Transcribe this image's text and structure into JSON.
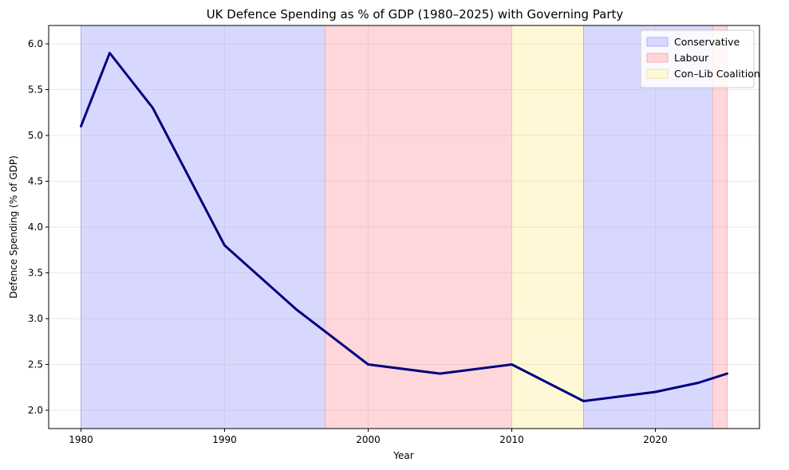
{
  "chart_data": {
    "type": "line",
    "title": "UK Defence Spending as % of GDP (1980–2025) with Governing Party",
    "xlabel": "Year",
    "ylabel": "Defence Spending (% of GDP)",
    "xlim": [
      1977.75,
      2027.25
    ],
    "ylim": [
      1.8,
      6.2
    ],
    "xticks": [
      1980,
      1990,
      2000,
      2010,
      2020
    ],
    "yticks": [
      2.0,
      2.5,
      3.0,
      3.5,
      4.0,
      4.5,
      5.0,
      5.5,
      6.0
    ],
    "ytick_labels": [
      "2.0",
      "2.5",
      "3.0",
      "3.5",
      "4.0",
      "4.5",
      "5.0",
      "5.5",
      "6.0"
    ],
    "grid": true,
    "legend_position": "top-right",
    "series": [
      {
        "name": "Defence Spending",
        "color": "#000080",
        "x": [
          1980,
          1982,
          1985,
          1990,
          1995,
          2000,
          2005,
          2010,
          2015,
          2020,
          2023,
          2025
        ],
        "y": [
          5.1,
          5.9,
          5.3,
          3.8,
          3.1,
          2.5,
          2.4,
          2.5,
          2.1,
          2.2,
          2.3,
          2.4
        ]
      }
    ],
    "party_periods": [
      {
        "party": "Conservative",
        "start": 1980,
        "end": 1997
      },
      {
        "party": "Labour",
        "start": 1997,
        "end": 2010
      },
      {
        "party": "Con–Lib Coalition",
        "start": 2010,
        "end": 2015
      },
      {
        "party": "Conservative",
        "start": 2015,
        "end": 2024
      },
      {
        "party": "Labour",
        "start": 2024,
        "end": 2025
      }
    ],
    "legend": [
      {
        "label": "Conservative",
        "fill": "#d8d8ff",
        "edge": "#b0b0f5"
      },
      {
        "label": "Labour",
        "fill": "#ffd6d9",
        "edge": "#f5b0b5"
      },
      {
        "label": "Con–Lib Coalition",
        "fill": "#fff8d6",
        "edge": "#f0e2a8"
      }
    ],
    "party_colors": {
      "Conservative": {
        "fill": "#d8d8ff",
        "edge": "#b0b0f5"
      },
      "Labour": {
        "fill": "#ffd6d9",
        "edge": "#f5b0b5"
      },
      "Con–Lib Coalition": {
        "fill": "#fff8d6",
        "edge": "#f0e2a8"
      }
    }
  }
}
